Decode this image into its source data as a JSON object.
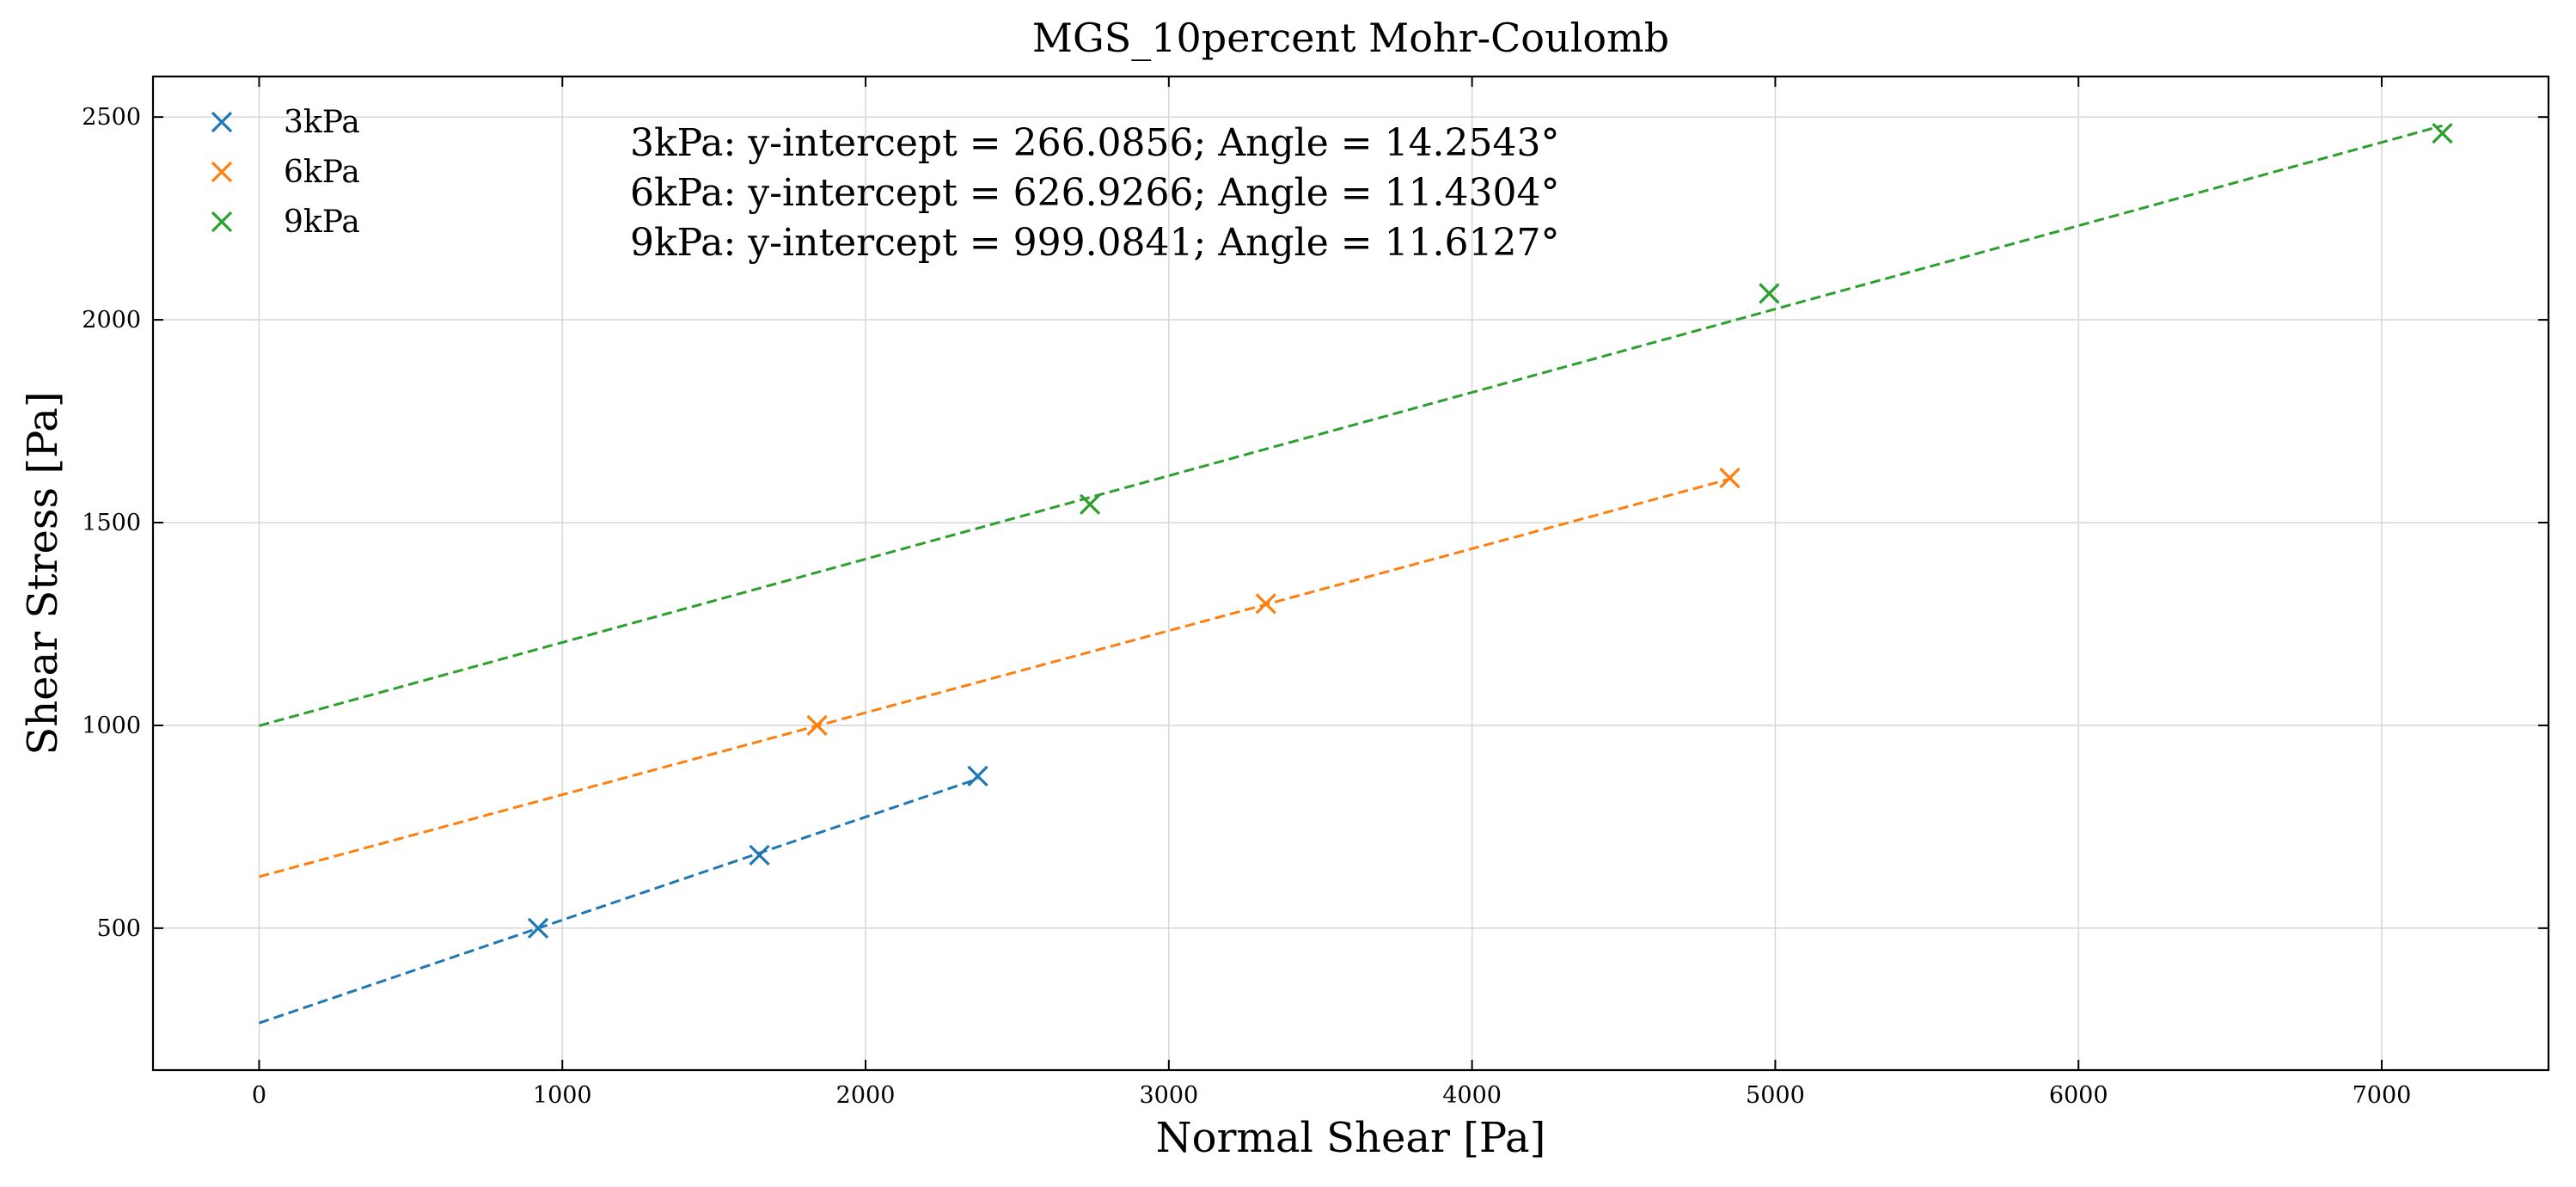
{
  "chart_data": {
    "type": "scatter",
    "title": "MGS_10percent Mohr-Coulomb",
    "xlabel": "Normal Shear [Pa]",
    "ylabel": "Shear Stress [Pa]",
    "xlim": [
      -350,
      7550
    ],
    "ylim": [
      150,
      2600
    ],
    "xticks": [
      0,
      1000,
      2000,
      3000,
      4000,
      5000,
      6000,
      7000
    ],
    "yticks": [
      500,
      1000,
      1500,
      2000,
      2500
    ],
    "grid": true,
    "legend_position": "top-left",
    "series": [
      {
        "name": "3kPa",
        "color": "#1f77b4",
        "marker": "x",
        "points": [
          [
            920,
            500
          ],
          [
            1650,
            680
          ],
          [
            2370,
            875
          ]
        ],
        "fit": {
          "intercept": 266.0856,
          "angle_deg": 14.2543,
          "x_range": [
            0,
            2370
          ]
        }
      },
      {
        "name": "6kPa",
        "color": "#ff7f0e",
        "marker": "x",
        "points": [
          [
            1840,
            1000
          ],
          [
            3320,
            1300
          ],
          [
            4850,
            1610
          ]
        ],
        "fit": {
          "intercept": 626.9266,
          "angle_deg": 11.4304,
          "x_range": [
            0,
            4850
          ]
        }
      },
      {
        "name": "9kPa",
        "color": "#2ca02c",
        "marker": "x",
        "points": [
          [
            2740,
            1545
          ],
          [
            4980,
            2065
          ],
          [
            7200,
            2460
          ]
        ],
        "fit": {
          "intercept": 999.0841,
          "angle_deg": 11.6127,
          "x_range": [
            0,
            7200
          ]
        }
      }
    ],
    "annotations": [
      "3kPa: y-intercept = 266.0856; Angle = 14.2543°",
      "6kPa: y-intercept = 626.9266; Angle = 11.4304°",
      "9kPa: y-intercept = 999.0841; Angle = 11.6127°"
    ]
  }
}
